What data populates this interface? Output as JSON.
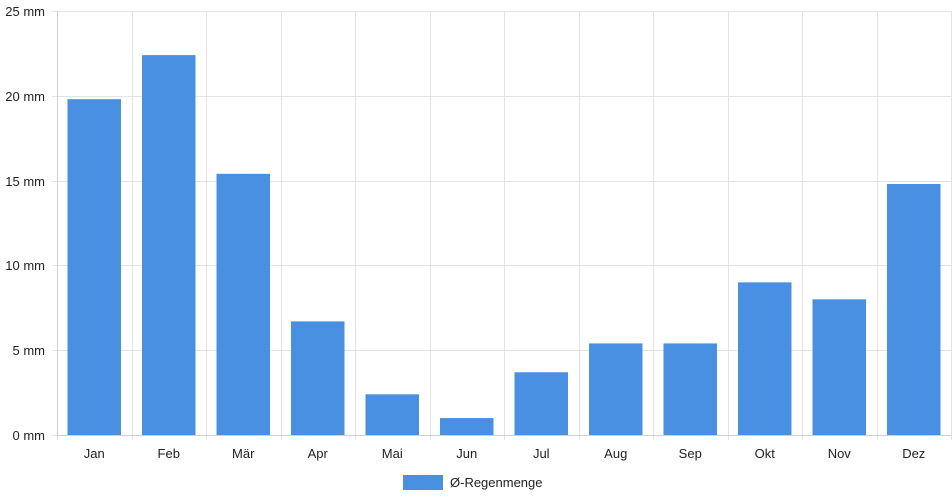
{
  "chart_data": {
    "type": "bar",
    "categories": [
      "Jan",
      "Feb",
      "Mär",
      "Apr",
      "Mai",
      "Jun",
      "Jul",
      "Aug",
      "Sep",
      "Okt",
      "Nov",
      "Dez"
    ],
    "series": [
      {
        "name": "Ø-Regenmenge",
        "values": [
          19.8,
          22.4,
          15.4,
          6.7,
          2.4,
          1.0,
          3.7,
          5.4,
          5.4,
          9.0,
          8.0,
          14.8
        ],
        "color": "#4a90e2"
      }
    ],
    "y_ticks": [
      "0 mm",
      "5 mm",
      "10 mm",
      "15 mm",
      "20 mm",
      "25 mm"
    ],
    "ylim": [
      0,
      25
    ],
    "grid": true,
    "legend_position": "bottom-center"
  }
}
